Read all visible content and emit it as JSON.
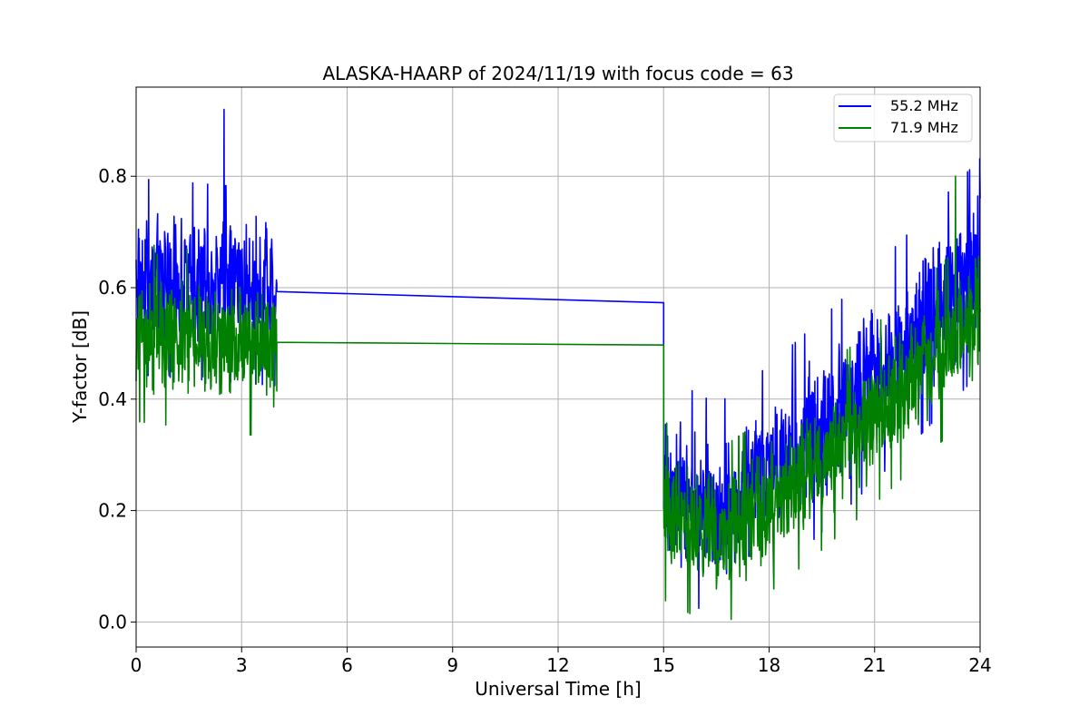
{
  "chart_data": {
    "type": "line",
    "title": "ALASKA-HAARP of 2024/11/19 with focus code = 63",
    "xlabel": "Universal Time [h]",
    "ylabel": "Y-factor [dB]",
    "xlim": [
      0,
      24
    ],
    "ylim": [
      -0.045,
      0.96
    ],
    "xticks": [
      0,
      3,
      6,
      9,
      12,
      15,
      18,
      21,
      24
    ],
    "xtick_labels": [
      "0",
      "3",
      "6",
      "9",
      "12",
      "15",
      "18",
      "21",
      "24"
    ],
    "yticks": [
      0.0,
      0.2,
      0.4,
      0.6,
      0.8
    ],
    "ytick_labels": [
      "0.0",
      "0.2",
      "0.4",
      "0.6",
      "0.8"
    ],
    "grid": true,
    "legend_position": "top-right",
    "series": [
      {
        "name": "55.2 MHz",
        "color": "#0000ff",
        "segments": [
          {
            "x_range": [
              0,
              4
            ],
            "base_start": 0.62,
            "base_end": 0.6,
            "noise_amp": 0.11,
            "peak": 0.92,
            "peak_x": 2.5
          },
          {
            "x": [
              4.0,
              15.0
            ],
            "y": [
              0.593,
              0.573
            ]
          },
          {
            "x_range": [
              15,
              24
            ],
            "base_start": 0.25,
            "base_mid": 0.2,
            "mid_x": 16.5,
            "base_end": 0.64,
            "noise_amp": 0.12,
            "peak": 0.76,
            "peak_x": 24
          }
        ]
      },
      {
        "name": "71.9 MHz",
        "color": "#008000",
        "segments": [
          {
            "x_range": [
              0,
              4
            ],
            "base_start": 0.52,
            "base_end": 0.49,
            "noise_amp": 0.1,
            "peak": 0.66,
            "peak_x": 0.6
          },
          {
            "x": [
              4.0,
              15.0
            ],
            "y": [
              0.502,
              0.497
            ]
          },
          {
            "x_range": [
              15,
              24
            ],
            "base_start": 0.2,
            "base_mid": 0.15,
            "mid_x": 16.5,
            "base_end": 0.55,
            "noise_amp": 0.1,
            "peak": 0.8,
            "peak_x": 23.3
          }
        ]
      }
    ]
  }
}
